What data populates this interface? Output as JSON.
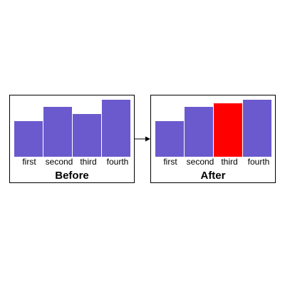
{
  "chart_data": [
    {
      "type": "bar",
      "title": "Before",
      "categories": [
        "first",
        "second",
        "third",
        "fourth"
      ],
      "values": [
        50,
        70,
        60,
        80
      ],
      "ylim": [
        0,
        80
      ],
      "bar_color": "#6a5acd",
      "highlight_index": null,
      "highlight_color": null
    },
    {
      "type": "bar",
      "title": "After",
      "categories": [
        "first",
        "second",
        "third",
        "fourth"
      ],
      "values": [
        50,
        70,
        75,
        80
      ],
      "ylim": [
        0,
        80
      ],
      "bar_color": "#6a5acd",
      "highlight_index": 2,
      "highlight_color": "#ff0000"
    }
  ],
  "arrow": {
    "icon": "arrow-right-icon",
    "color": "#000000"
  }
}
